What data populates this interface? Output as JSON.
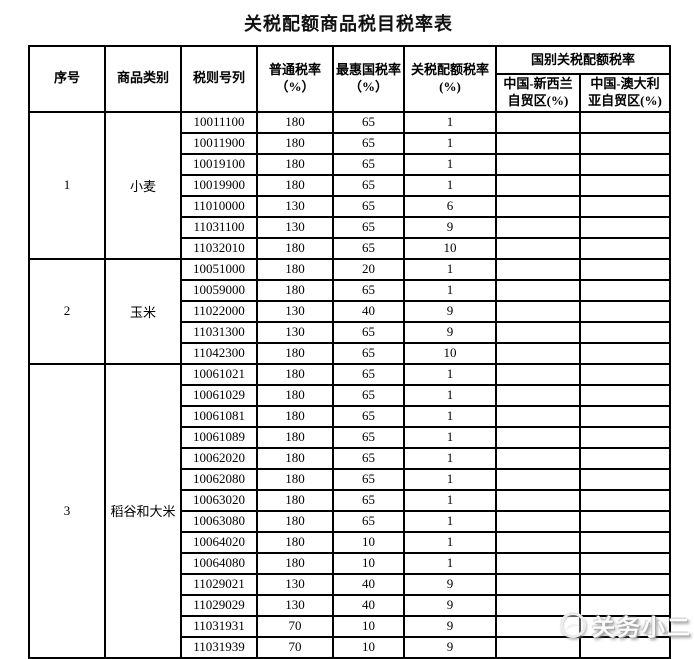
{
  "title": "关税配额商品税目税率表",
  "table": {
    "headers": {
      "serial": "序号",
      "category": "商品类别",
      "tariff_code": "税则号列",
      "general_rate": "普通税率\n（%）",
      "mfn_rate": "最惠国税率\n（%）",
      "quota_rate": "关税配额税率\n(%)",
      "country_group": "国别关税配额税率",
      "nz_fta": "中国-新西兰\n自贸区(%)",
      "au_fta": "中国-澳大利\n亚自贸区(%)"
    },
    "sections": [
      {
        "serial": "1",
        "category": "小麦",
        "rows": [
          {
            "code": "10011100",
            "general": "180",
            "mfn": "65",
            "quota": "1",
            "nz": "",
            "au": ""
          },
          {
            "code": "10011900",
            "general": "180",
            "mfn": "65",
            "quota": "1",
            "nz": "",
            "au": ""
          },
          {
            "code": "10019100",
            "general": "180",
            "mfn": "65",
            "quota": "1",
            "nz": "",
            "au": ""
          },
          {
            "code": "10019900",
            "general": "180",
            "mfn": "65",
            "quota": "1",
            "nz": "",
            "au": ""
          },
          {
            "code": "11010000",
            "general": "130",
            "mfn": "65",
            "quota": "6",
            "nz": "",
            "au": ""
          },
          {
            "code": "11031100",
            "general": "130",
            "mfn": "65",
            "quota": "9",
            "nz": "",
            "au": ""
          },
          {
            "code": "11032010",
            "general": "180",
            "mfn": "65",
            "quota": "10",
            "nz": "",
            "au": ""
          }
        ]
      },
      {
        "serial": "2",
        "category": "玉米",
        "rows": [
          {
            "code": "10051000",
            "general": "180",
            "mfn": "20",
            "quota": "1",
            "nz": "",
            "au": ""
          },
          {
            "code": "10059000",
            "general": "180",
            "mfn": "65",
            "quota": "1",
            "nz": "",
            "au": ""
          },
          {
            "code": "11022000",
            "general": "130",
            "mfn": "40",
            "quota": "9",
            "nz": "",
            "au": ""
          },
          {
            "code": "11031300",
            "general": "130",
            "mfn": "65",
            "quota": "9",
            "nz": "",
            "au": ""
          },
          {
            "code": "11042300",
            "general": "180",
            "mfn": "65",
            "quota": "10",
            "nz": "",
            "au": ""
          }
        ]
      },
      {
        "serial": "3",
        "category": "稻谷和大米",
        "rows": [
          {
            "code": "10061021",
            "general": "180",
            "mfn": "65",
            "quota": "1",
            "nz": "",
            "au": ""
          },
          {
            "code": "10061029",
            "general": "180",
            "mfn": "65",
            "quota": "1",
            "nz": "",
            "au": ""
          },
          {
            "code": "10061081",
            "general": "180",
            "mfn": "65",
            "quota": "1",
            "nz": "",
            "au": ""
          },
          {
            "code": "10061089",
            "general": "180",
            "mfn": "65",
            "quota": "1",
            "nz": "",
            "au": ""
          },
          {
            "code": "10062020",
            "general": "180",
            "mfn": "65",
            "quota": "1",
            "nz": "",
            "au": ""
          },
          {
            "code": "10062080",
            "general": "180",
            "mfn": "65",
            "quota": "1",
            "nz": "",
            "au": ""
          },
          {
            "code": "10063020",
            "general": "180",
            "mfn": "65",
            "quota": "1",
            "nz": "",
            "au": ""
          },
          {
            "code": "10063080",
            "general": "180",
            "mfn": "65",
            "quota": "1",
            "nz": "",
            "au": ""
          },
          {
            "code": "10064020",
            "general": "180",
            "mfn": "10",
            "quota": "1",
            "nz": "",
            "au": ""
          },
          {
            "code": "10064080",
            "general": "180",
            "mfn": "10",
            "quota": "1",
            "nz": "",
            "au": ""
          },
          {
            "code": "11029021",
            "general": "130",
            "mfn": "40",
            "quota": "9",
            "nz": "",
            "au": ""
          },
          {
            "code": "11029029",
            "general": "130",
            "mfn": "40",
            "quota": "9",
            "nz": "",
            "au": ""
          },
          {
            "code": "11031931",
            "general": "70",
            "mfn": "10",
            "quota": "9",
            "nz": "",
            "au": ""
          },
          {
            "code": "11031939",
            "general": "70",
            "mfn": "10",
            "quota": "9",
            "nz": "",
            "au": ""
          }
        ]
      },
      {
        "serial": "",
        "category": "",
        "rows": [
          {
            "code": "",
            "general": "",
            "mfn": "",
            "quota": "",
            "nz": "",
            "au": ""
          }
        ]
      }
    ]
  },
  "watermark": {
    "text": "关务小二"
  }
}
